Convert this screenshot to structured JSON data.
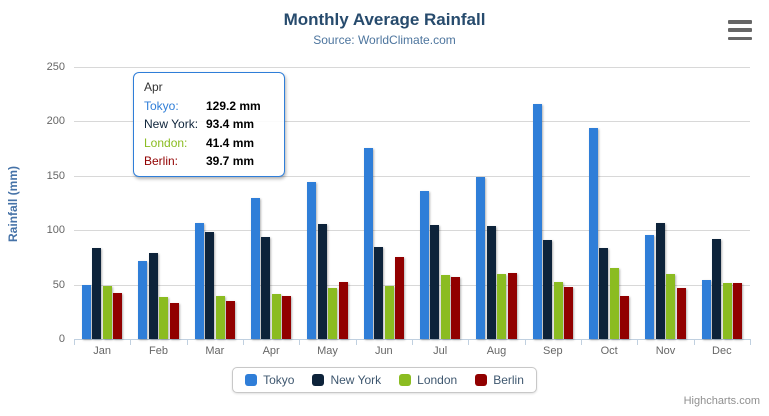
{
  "header": {
    "title": "Monthly Average Rainfall",
    "subtitle": "Source: WorldClimate.com"
  },
  "chart_data": {
    "type": "bar",
    "title": "Monthly Average Rainfall",
    "subtitle": "Source: WorldClimate.com",
    "categories": [
      "Jan",
      "Feb",
      "Mar",
      "Apr",
      "May",
      "Jun",
      "Jul",
      "Aug",
      "Sep",
      "Oct",
      "Nov",
      "Dec"
    ],
    "series": [
      {
        "name": "Tokyo",
        "color": "#2f7ed8",
        "values": [
          49.9,
          71.5,
          106.4,
          129.2,
          144.0,
          176.0,
          135.6,
          148.5,
          216.4,
          194.1,
          95.6,
          54.4
        ]
      },
      {
        "name": "New York",
        "color": "#0d233a",
        "values": [
          83.6,
          78.8,
          98.5,
          93.4,
          106.0,
          84.5,
          105.0,
          104.3,
          91.2,
          83.5,
          106.6,
          92.3
        ]
      },
      {
        "name": "London",
        "color": "#8bbc21",
        "values": [
          48.9,
          38.8,
          39.3,
          41.4,
          47.0,
          48.3,
          59.0,
          59.6,
          52.4,
          65.2,
          59.3,
          51.2
        ]
      },
      {
        "name": "Berlin",
        "color": "#910000",
        "values": [
          42.4,
          33.2,
          34.5,
          39.7,
          52.6,
          75.5,
          57.4,
          60.4,
          47.6,
          39.1,
          46.8,
          51.1
        ]
      }
    ],
    "xlabel": "",
    "ylabel": "Rainfall (mm)",
    "ylim": [
      0,
      250
    ],
    "yticks": [
      0,
      50,
      100,
      150,
      200,
      250
    ],
    "grid": "horizontal",
    "legend_position": "bottom-center"
  },
  "tooltip": {
    "category": "Apr",
    "rows": [
      {
        "name": "Tokyo:",
        "value": "129.2 mm",
        "color": "#2f7ed8"
      },
      {
        "name": "New York:",
        "value": "93.4 mm",
        "color": "#0d233a"
      },
      {
        "name": "London:",
        "value": "41.4 mm",
        "color": "#8bbc21"
      },
      {
        "name": "Berlin:",
        "value": "39.7 mm",
        "color": "#910000"
      }
    ]
  },
  "credit": {
    "label": "Highcharts.com"
  },
  "colors": {
    "title": "#274b6d",
    "subtitle": "#4d759e",
    "axis_title": "#4572a7",
    "axis_labels": "#666666",
    "gridline": "#d8d8d8",
    "axis_line": "#c0d0e0",
    "tooltip_border": "#2f7ed8",
    "legend_text": "#3e576f",
    "credit": "#909090",
    "menu_icon": "#666666"
  }
}
